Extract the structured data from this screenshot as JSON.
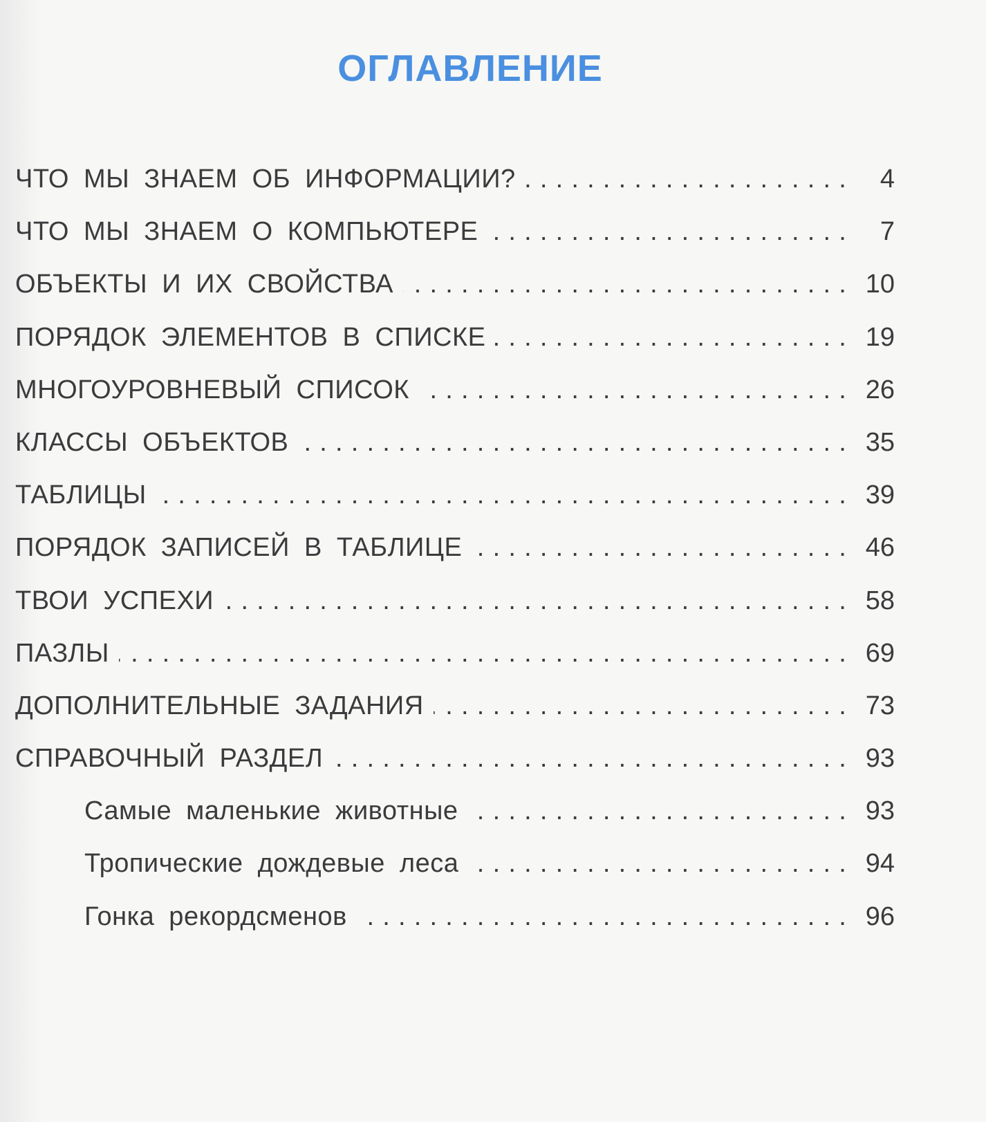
{
  "title": "ОГЛАВЛЕНИЕ",
  "colors": {
    "title": "#4a8fe0",
    "text": "#3b3b3d"
  },
  "entries": [
    {
      "label": "ЧТО МЫ ЗНАЕМ ОБ ИНФОРМАЦИИ?",
      "page": "4",
      "level": 1
    },
    {
      "label": "ЧТО МЫ ЗНАЕМ О КОМПЬЮТЕРЕ",
      "page": "7",
      "level": 1
    },
    {
      "label": "ОБЪЕКТЫ И ИХ СВОЙСТВА",
      "page": "10",
      "level": 1
    },
    {
      "label": "ПОРЯДОК ЭЛЕМЕНТОВ В СПИСКЕ",
      "page": "19",
      "level": 1
    },
    {
      "label": "МНОГОУРОВНЕВЫЙ СПИСОК",
      "page": "26",
      "level": 1
    },
    {
      "label": "КЛАССЫ ОБЪЕКТОВ",
      "page": "35",
      "level": 1
    },
    {
      "label": "ТАБЛИЦЫ",
      "page": "39",
      "level": 1
    },
    {
      "label": "ПОРЯДОК ЗАПИСЕЙ В ТАБЛИЦЕ",
      "page": "46",
      "level": 1
    },
    {
      "label": "ТВОИ УСПЕХИ",
      "page": "58",
      "level": 1
    },
    {
      "label": "ПАЗЛЫ",
      "page": "69",
      "level": 1
    },
    {
      "label": "ДОПОЛНИТЕЛЬНЫЕ ЗАДАНИЯ",
      "page": "73",
      "level": 1
    },
    {
      "label": "СПРАВОЧНЫЙ РАЗДЕЛ",
      "page": "93",
      "level": 1
    },
    {
      "label": "Самые маленькие животные",
      "page": "93",
      "level": 2
    },
    {
      "label": "Тропические дождевые леса",
      "page": "94",
      "level": 2
    },
    {
      "label": "Гонка рекордсменов",
      "page": "96",
      "level": 2
    }
  ]
}
